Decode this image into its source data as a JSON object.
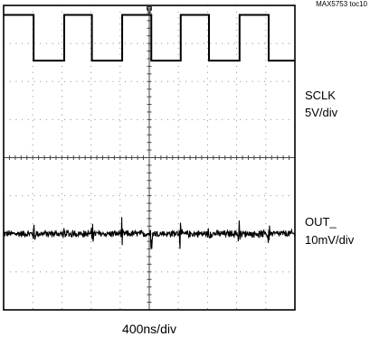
{
  "figure_id": "MAX5753 toc10",
  "channels": [
    {
      "name": "SCLK",
      "scale": "5V/div"
    },
    {
      "name": "OUT_",
      "scale": "10mV/div"
    }
  ],
  "timebase": "400ns/div",
  "chart_data": {
    "type": "line",
    "title": "",
    "xlabel": "400ns/div",
    "ylabel": "",
    "grid": true,
    "x_divisions": 10,
    "y_divisions": 8,
    "series": [
      {
        "name": "SCLK",
        "scale": "5V/div",
        "kind": "square_wave",
        "high_div": 3.75,
        "low_div": 2.55,
        "transitions_div": [
          0,
          1.03,
          2.08,
          3.03,
          4.07,
          5.07,
          6.08,
          7.05,
          8.1,
          9.1,
          10
        ],
        "initial_state": "high"
      },
      {
        "name": "OUT_",
        "scale": "10mV/div",
        "kind": "noise",
        "baseline_div": -2.0,
        "noise_amplitude_div": 0.08,
        "spike_times_div": [
          1.05,
          2.07,
          3.05,
          4.05,
          5.07,
          6.06,
          7.05,
          8.08,
          9.1
        ],
        "spike_amplitude_div": 0.45
      }
    ]
  }
}
